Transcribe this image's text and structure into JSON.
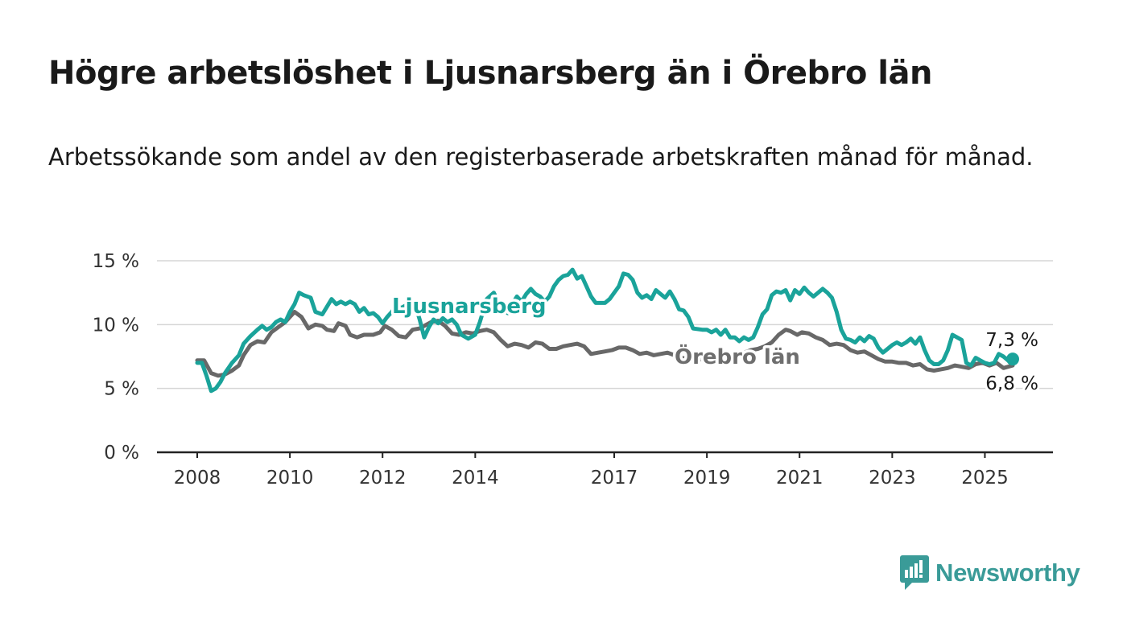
{
  "title": "Högre arbetslöshet i Ljusnarsberg än i Örebro län",
  "subtitle": "Arbetssökande som andel av den registerbaserade arbetskraften månad för månad.",
  "brand": {
    "name": "Newsworthy",
    "color": "#3a9b98",
    "icon": "newsworthy-logo-icon"
  },
  "chart_data": {
    "type": "line",
    "xlim": [
      2008,
      2025.6
    ],
    "ylim": [
      0,
      15
    ],
    "y_ticks": [
      0,
      5,
      10,
      15
    ],
    "y_tick_labels": [
      "0 %",
      "5 %",
      "10 %",
      "15 %"
    ],
    "x_ticks": [
      2008,
      2010,
      2012,
      2014,
      2017,
      2019,
      2021,
      2023,
      2025
    ],
    "x_tick_labels": [
      "2008",
      "2010",
      "2012",
      "2014",
      "2017",
      "2019",
      "2021",
      "2023",
      "2025"
    ],
    "grid": true,
    "series": [
      {
        "name": "Ljusnarsberg",
        "color": "#1aa39a",
        "end_label": "7,3 %",
        "points": [
          [
            2008.0,
            7.0
          ],
          [
            2008.1,
            7.0
          ],
          [
            2008.2,
            6.0
          ],
          [
            2008.3,
            4.8
          ],
          [
            2008.4,
            5.0
          ],
          [
            2008.5,
            5.5
          ],
          [
            2008.6,
            6.2
          ],
          [
            2008.75,
            7.0
          ],
          [
            2008.9,
            7.6
          ],
          [
            2009.0,
            8.5
          ],
          [
            2009.15,
            9.1
          ],
          [
            2009.3,
            9.6
          ],
          [
            2009.4,
            9.9
          ],
          [
            2009.5,
            9.6
          ],
          [
            2009.6,
            9.8
          ],
          [
            2009.7,
            10.2
          ],
          [
            2009.8,
            10.4
          ],
          [
            2009.9,
            10.2
          ],
          [
            2010.0,
            11.0
          ],
          [
            2010.1,
            11.6
          ],
          [
            2010.2,
            12.5
          ],
          [
            2010.3,
            12.3
          ],
          [
            2010.45,
            12.1
          ],
          [
            2010.55,
            11.0
          ],
          [
            2010.7,
            10.8
          ],
          [
            2010.8,
            11.4
          ],
          [
            2010.9,
            12.0
          ],
          [
            2011.0,
            11.6
          ],
          [
            2011.1,
            11.8
          ],
          [
            2011.2,
            11.6
          ],
          [
            2011.3,
            11.8
          ],
          [
            2011.4,
            11.6
          ],
          [
            2011.5,
            11.0
          ],
          [
            2011.6,
            11.3
          ],
          [
            2011.7,
            10.8
          ],
          [
            2011.8,
            10.9
          ],
          [
            2011.9,
            10.6
          ],
          [
            2012.0,
            10.1
          ],
          [
            2012.1,
            10.6
          ],
          [
            2012.2,
            11.0
          ],
          [
            2012.3,
            11.5
          ],
          [
            2012.4,
            11.3
          ],
          [
            2012.5,
            11.5
          ],
          [
            2012.6,
            11.4
          ],
          [
            2012.7,
            11.6
          ],
          [
            2012.8,
            10.4
          ],
          [
            2012.9,
            9.0
          ],
          [
            2013.0,
            9.8
          ],
          [
            2013.1,
            10.4
          ],
          [
            2013.2,
            10.1
          ],
          [
            2013.3,
            10.5
          ],
          [
            2013.4,
            10.2
          ],
          [
            2013.5,
            10.4
          ],
          [
            2013.6,
            10.0
          ],
          [
            2013.7,
            9.2
          ],
          [
            2013.85,
            8.9
          ],
          [
            2014.0,
            9.2
          ],
          [
            2014.1,
            10.2
          ],
          [
            2014.25,
            12.0
          ],
          [
            2014.4,
            12.5
          ],
          [
            2014.55,
            11.4
          ],
          [
            2014.7,
            10.9
          ],
          [
            2014.8,
            11.6
          ],
          [
            2014.9,
            12.2
          ],
          [
            2015.0,
            11.8
          ],
          [
            2015.1,
            12.4
          ],
          [
            2015.2,
            12.8
          ],
          [
            2015.3,
            12.4
          ],
          [
            2015.4,
            12.2
          ],
          [
            2015.5,
            11.8
          ],
          [
            2015.6,
            12.2
          ],
          [
            2015.7,
            13.0
          ],
          [
            2015.8,
            13.5
          ],
          [
            2015.9,
            13.8
          ],
          [
            2016.0,
            13.9
          ],
          [
            2016.1,
            14.3
          ],
          [
            2016.2,
            13.6
          ],
          [
            2016.3,
            13.8
          ],
          [
            2016.4,
            13.0
          ],
          [
            2016.5,
            12.2
          ],
          [
            2016.6,
            11.7
          ],
          [
            2016.8,
            11.7
          ],
          [
            2016.9,
            12.0
          ],
          [
            2017.0,
            12.5
          ],
          [
            2017.1,
            13.0
          ],
          [
            2017.2,
            14.0
          ],
          [
            2017.3,
            13.9
          ],
          [
            2017.4,
            13.5
          ],
          [
            2017.5,
            12.5
          ],
          [
            2017.6,
            12.1
          ],
          [
            2017.7,
            12.3
          ],
          [
            2017.8,
            12.0
          ],
          [
            2017.9,
            12.7
          ],
          [
            2018.0,
            12.4
          ],
          [
            2018.1,
            12.1
          ],
          [
            2018.2,
            12.6
          ],
          [
            2018.3,
            12.0
          ],
          [
            2018.4,
            11.2
          ],
          [
            2018.5,
            11.1
          ],
          [
            2018.6,
            10.6
          ],
          [
            2018.7,
            9.7
          ],
          [
            2018.9,
            9.6
          ],
          [
            2019.0,
            9.6
          ],
          [
            2019.1,
            9.4
          ],
          [
            2019.2,
            9.6
          ],
          [
            2019.3,
            9.2
          ],
          [
            2019.4,
            9.6
          ],
          [
            2019.5,
            9.0
          ],
          [
            2019.6,
            9.0
          ],
          [
            2019.7,
            8.7
          ],
          [
            2019.8,
            9.0
          ],
          [
            2019.9,
            8.8
          ],
          [
            2020.0,
            9.0
          ],
          [
            2020.1,
            9.8
          ],
          [
            2020.2,
            10.8
          ],
          [
            2020.3,
            11.2
          ],
          [
            2020.4,
            12.3
          ],
          [
            2020.5,
            12.6
          ],
          [
            2020.6,
            12.5
          ],
          [
            2020.7,
            12.7
          ],
          [
            2020.8,
            11.9
          ],
          [
            2020.9,
            12.7
          ],
          [
            2021.0,
            12.4
          ],
          [
            2021.1,
            12.9
          ],
          [
            2021.2,
            12.5
          ],
          [
            2021.3,
            12.2
          ],
          [
            2021.4,
            12.5
          ],
          [
            2021.5,
            12.8
          ],
          [
            2021.6,
            12.5
          ],
          [
            2021.7,
            12.1
          ],
          [
            2021.8,
            11.0
          ],
          [
            2021.9,
            9.6
          ],
          [
            2022.0,
            8.9
          ],
          [
            2022.1,
            8.8
          ],
          [
            2022.2,
            8.6
          ],
          [
            2022.3,
            9.0
          ],
          [
            2022.4,
            8.7
          ],
          [
            2022.5,
            9.1
          ],
          [
            2022.6,
            8.9
          ],
          [
            2022.7,
            8.2
          ],
          [
            2022.8,
            7.8
          ],
          [
            2022.9,
            8.1
          ],
          [
            2023.0,
            8.4
          ],
          [
            2023.1,
            8.6
          ],
          [
            2023.2,
            8.4
          ],
          [
            2023.3,
            8.6
          ],
          [
            2023.4,
            8.9
          ],
          [
            2023.5,
            8.5
          ],
          [
            2023.6,
            9.0
          ],
          [
            2023.7,
            8.0
          ],
          [
            2023.8,
            7.2
          ],
          [
            2023.9,
            6.9
          ],
          [
            2024.0,
            6.9
          ],
          [
            2024.1,
            7.2
          ],
          [
            2024.2,
            8.0
          ],
          [
            2024.3,
            9.2
          ],
          [
            2024.4,
            9.0
          ],
          [
            2024.5,
            8.8
          ],
          [
            2024.6,
            7.0
          ],
          [
            2024.7,
            6.8
          ],
          [
            2024.8,
            7.4
          ],
          [
            2024.9,
            7.2
          ],
          [
            2025.0,
            7.0
          ],
          [
            2025.1,
            6.9
          ],
          [
            2025.2,
            7.0
          ],
          [
            2025.3,
            7.7
          ],
          [
            2025.4,
            7.5
          ],
          [
            2025.5,
            7.2
          ],
          [
            2025.6,
            7.3
          ]
        ]
      },
      {
        "name": "Örebro län",
        "color": "#686868",
        "end_label": "6,8 %",
        "points": [
          [
            2008.0,
            7.2
          ],
          [
            2008.15,
            7.2
          ],
          [
            2008.3,
            6.2
          ],
          [
            2008.45,
            6.0
          ],
          [
            2008.6,
            6.1
          ],
          [
            2008.75,
            6.4
          ],
          [
            2008.9,
            6.8
          ],
          [
            2009.0,
            7.6
          ],
          [
            2009.15,
            8.4
          ],
          [
            2009.3,
            8.7
          ],
          [
            2009.45,
            8.6
          ],
          [
            2009.6,
            9.4
          ],
          [
            2009.75,
            9.8
          ],
          [
            2009.9,
            10.2
          ],
          [
            2010.0,
            10.6
          ],
          [
            2010.1,
            11.0
          ],
          [
            2010.25,
            10.6
          ],
          [
            2010.4,
            9.7
          ],
          [
            2010.55,
            10.0
          ],
          [
            2010.7,
            9.9
          ],
          [
            2010.8,
            9.6
          ],
          [
            2010.95,
            9.5
          ],
          [
            2011.05,
            10.1
          ],
          [
            2011.2,
            9.9
          ],
          [
            2011.3,
            9.2
          ],
          [
            2011.45,
            9.0
          ],
          [
            2011.6,
            9.2
          ],
          [
            2011.8,
            9.2
          ],
          [
            2011.95,
            9.4
          ],
          [
            2012.05,
            9.9
          ],
          [
            2012.2,
            9.6
          ],
          [
            2012.35,
            9.1
          ],
          [
            2012.5,
            9.0
          ],
          [
            2012.65,
            9.6
          ],
          [
            2012.8,
            9.7
          ],
          [
            2012.95,
            10.0
          ],
          [
            2013.05,
            10.2
          ],
          [
            2013.2,
            10.3
          ],
          [
            2013.35,
            9.9
          ],
          [
            2013.5,
            9.3
          ],
          [
            2013.65,
            9.2
          ],
          [
            2013.8,
            9.4
          ],
          [
            2013.95,
            9.3
          ],
          [
            2014.1,
            9.5
          ],
          [
            2014.25,
            9.6
          ],
          [
            2014.4,
            9.4
          ],
          [
            2014.55,
            8.8
          ],
          [
            2014.7,
            8.3
          ],
          [
            2014.85,
            8.5
          ],
          [
            2015.0,
            8.4
          ],
          [
            2015.15,
            8.2
          ],
          [
            2015.3,
            8.6
          ],
          [
            2015.45,
            8.5
          ],
          [
            2015.6,
            8.1
          ],
          [
            2015.75,
            8.1
          ],
          [
            2015.9,
            8.3
          ],
          [
            2016.05,
            8.4
          ],
          [
            2016.2,
            8.5
          ],
          [
            2016.35,
            8.3
          ],
          [
            2016.5,
            7.7
          ],
          [
            2016.65,
            7.8
          ],
          [
            2016.8,
            7.9
          ],
          [
            2016.95,
            8.0
          ],
          [
            2017.1,
            8.2
          ],
          [
            2017.25,
            8.2
          ],
          [
            2017.4,
            8.0
          ],
          [
            2017.55,
            7.7
          ],
          [
            2017.7,
            7.8
          ],
          [
            2017.85,
            7.6
          ],
          [
            2018.0,
            7.7
          ],
          [
            2018.15,
            7.8
          ],
          [
            2018.3,
            7.6
          ],
          [
            2018.45,
            7.4
          ],
          [
            2018.6,
            7.3
          ],
          [
            2018.75,
            7.2
          ],
          [
            2018.9,
            7.3
          ],
          [
            2019.05,
            7.3
          ],
          [
            2019.2,
            7.4
          ],
          [
            2019.35,
            7.5
          ],
          [
            2019.5,
            7.5
          ],
          [
            2019.65,
            7.6
          ],
          [
            2019.8,
            7.8
          ],
          [
            2019.95,
            8.0
          ],
          [
            2020.1,
            8.1
          ],
          [
            2020.25,
            8.3
          ],
          [
            2020.4,
            8.6
          ],
          [
            2020.55,
            9.2
          ],
          [
            2020.7,
            9.6
          ],
          [
            2020.8,
            9.5
          ],
          [
            2020.95,
            9.2
          ],
          [
            2021.05,
            9.4
          ],
          [
            2021.2,
            9.3
          ],
          [
            2021.35,
            9.0
          ],
          [
            2021.5,
            8.8
          ],
          [
            2021.65,
            8.4
          ],
          [
            2021.8,
            8.5
          ],
          [
            2021.95,
            8.4
          ],
          [
            2022.1,
            8.0
          ],
          [
            2022.25,
            7.8
          ],
          [
            2022.4,
            7.9
          ],
          [
            2022.55,
            7.6
          ],
          [
            2022.7,
            7.3
          ],
          [
            2022.85,
            7.1
          ],
          [
            2023.0,
            7.1
          ],
          [
            2023.15,
            7.0
          ],
          [
            2023.3,
            7.0
          ],
          [
            2023.45,
            6.8
          ],
          [
            2023.6,
            6.9
          ],
          [
            2023.75,
            6.5
          ],
          [
            2023.9,
            6.4
          ],
          [
            2024.05,
            6.5
          ],
          [
            2024.2,
            6.6
          ],
          [
            2024.35,
            6.8
          ],
          [
            2024.5,
            6.7
          ],
          [
            2024.65,
            6.6
          ],
          [
            2024.8,
            6.9
          ],
          [
            2024.95,
            7.0
          ],
          [
            2025.1,
            6.8
          ],
          [
            2025.25,
            7.0
          ],
          [
            2025.4,
            6.6
          ],
          [
            2025.6,
            6.8
          ]
        ]
      }
    ]
  }
}
